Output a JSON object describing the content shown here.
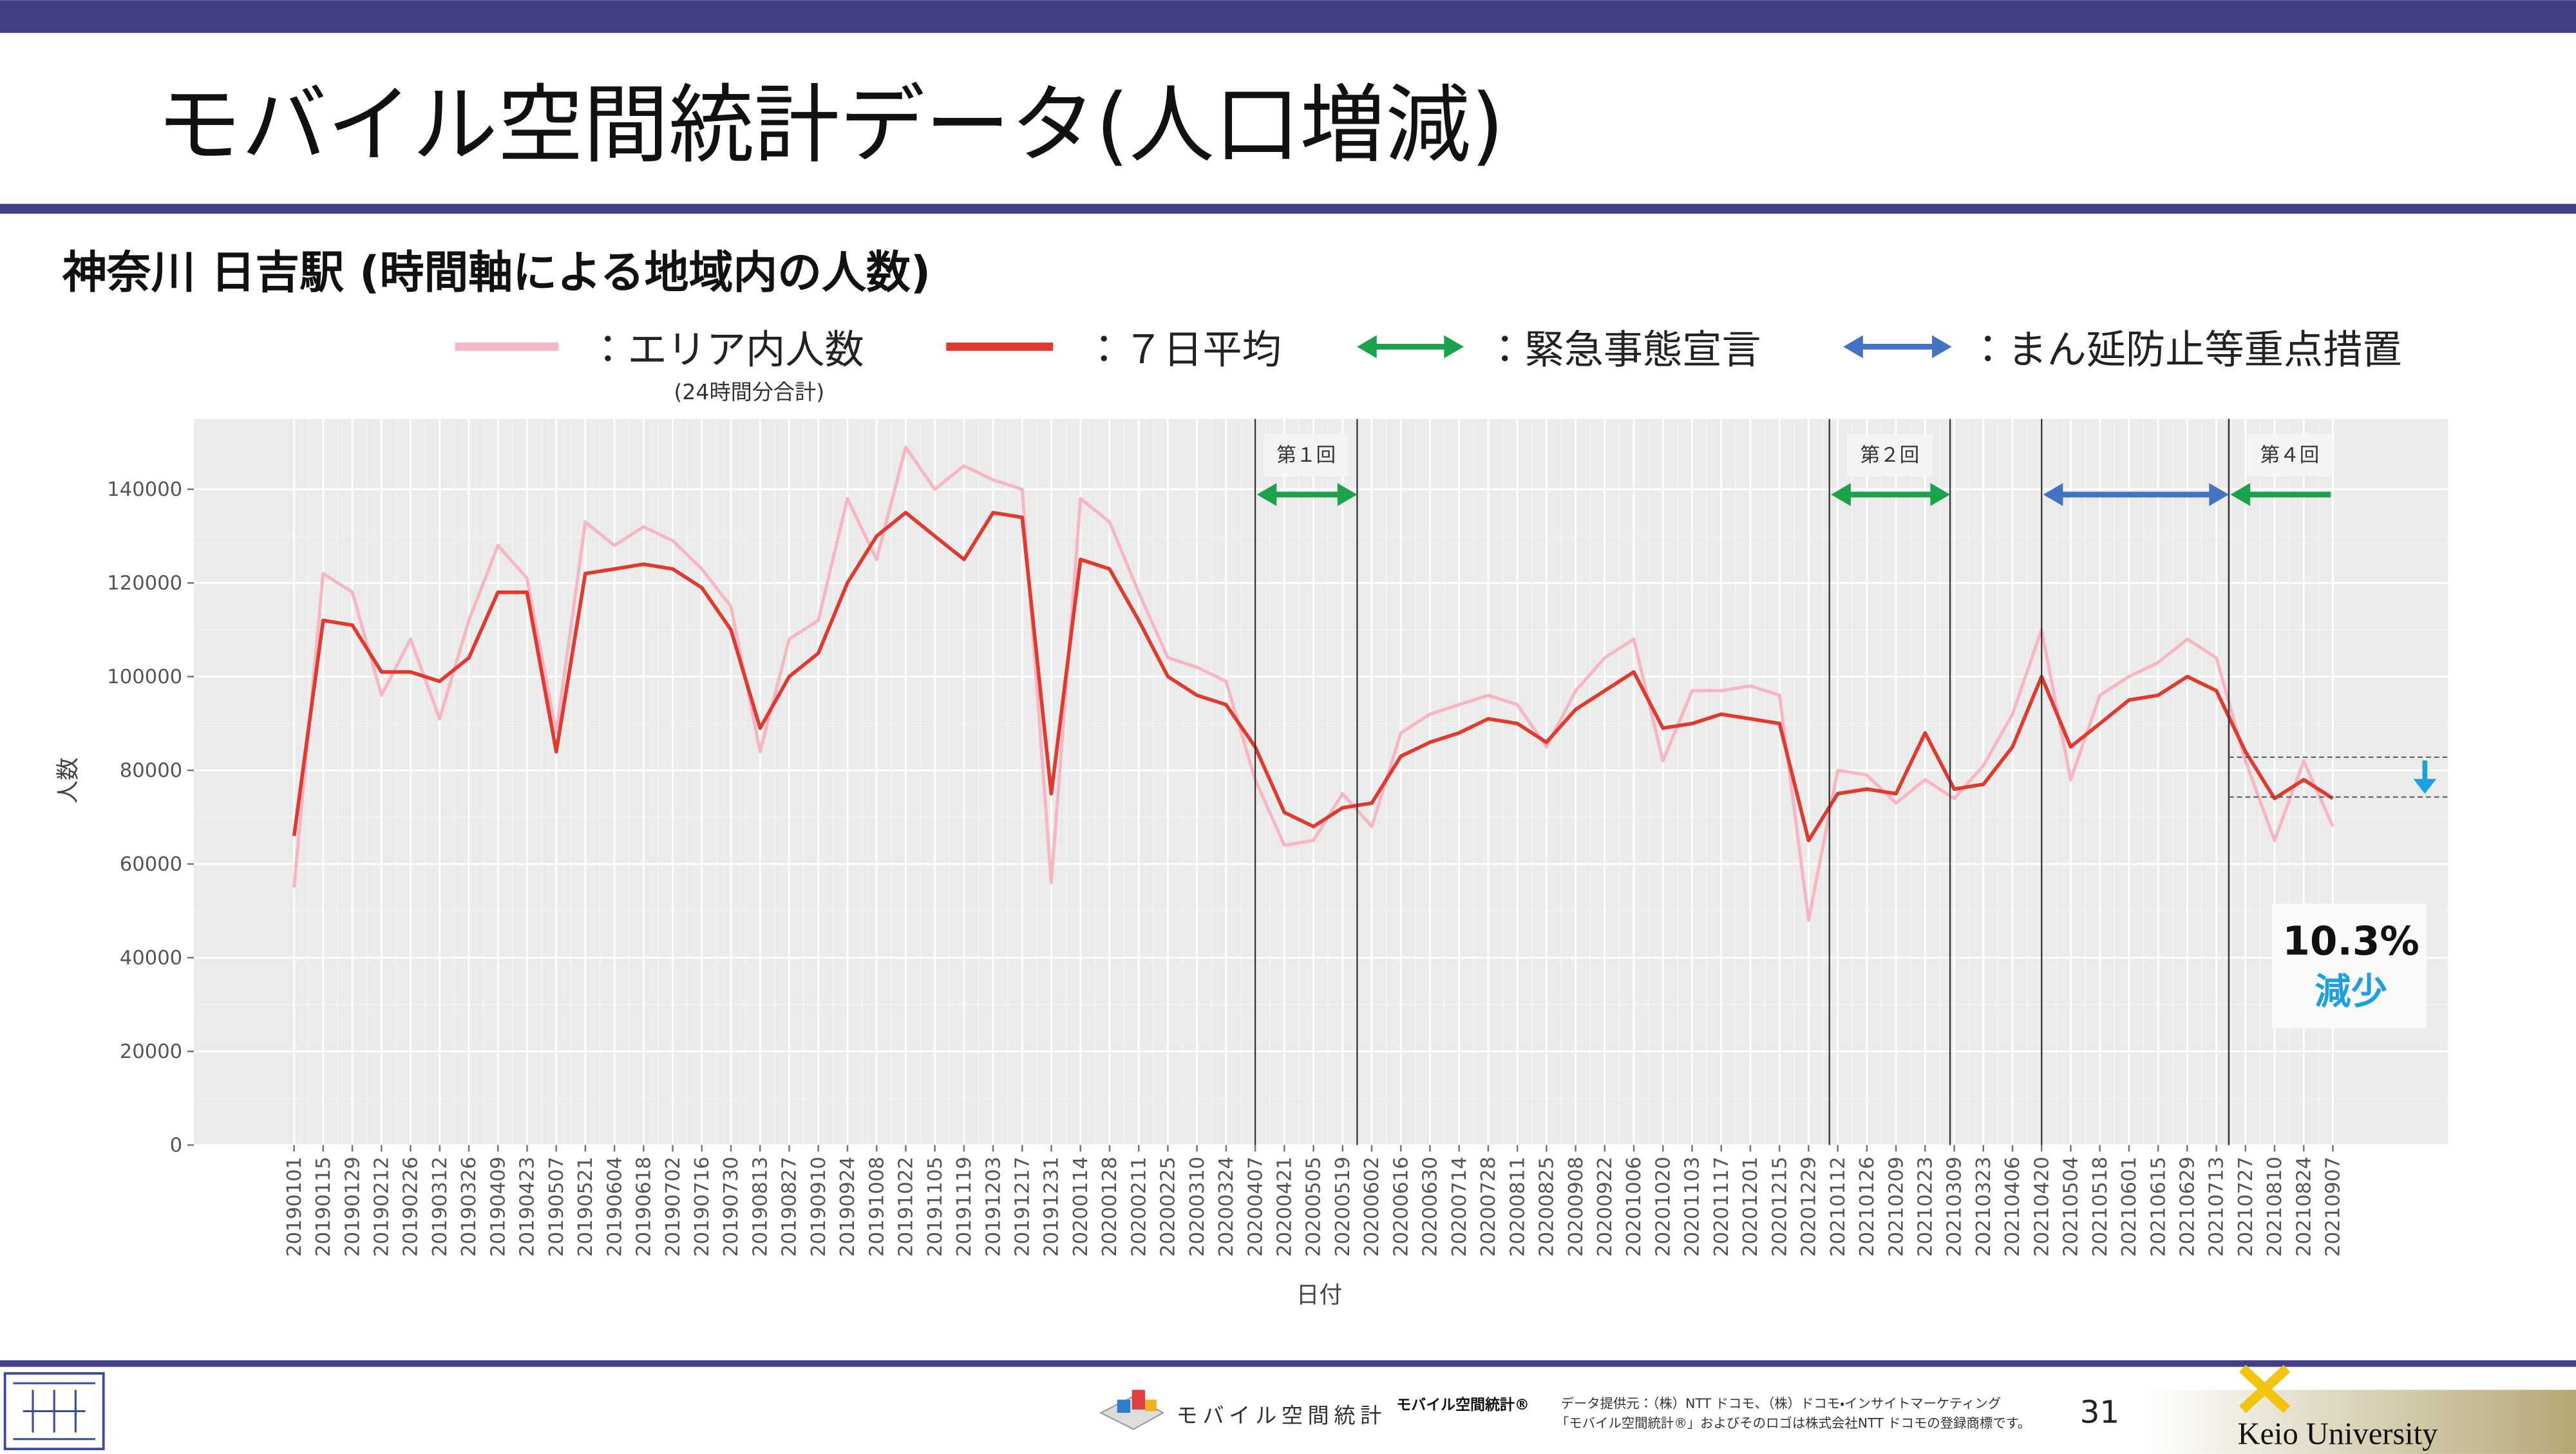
{
  "header": {
    "title": "モバイル空間統計データ(人口増減)",
    "subtitle": "神奈川 日吉駅 (時間軸による地域内の人数)"
  },
  "chart_data": {
    "type": "line",
    "x_label": "日付",
    "y_label": "人数",
    "x": [
      "20190101",
      "20190115",
      "20190129",
      "20190212",
      "20190226",
      "20190312",
      "20190326",
      "20190409",
      "20190423",
      "20190507",
      "20190521",
      "20190604",
      "20190618",
      "20190702",
      "20190716",
      "20190730",
      "20190813",
      "20190827",
      "20190910",
      "20190924",
      "20191008",
      "20191022",
      "20191105",
      "20191119",
      "20191203",
      "20191217",
      "20191231",
      "20200114",
      "20200128",
      "20200211",
      "20200225",
      "20200310",
      "20200324",
      "20200407",
      "20200421",
      "20200505",
      "20200519",
      "20200602",
      "20200616",
      "20200630",
      "20200714",
      "20200728",
      "20200811",
      "20200825",
      "20200908",
      "20200922",
      "20201006",
      "20201020",
      "20201103",
      "20201117",
      "20201201",
      "20201215",
      "20201229",
      "20210112",
      "20210126",
      "20210209",
      "20210223",
      "20210309",
      "20210323",
      "20210406",
      "20210420",
      "20210504",
      "20210518",
      "20210601",
      "20210615",
      "20210629",
      "20210713",
      "20210727",
      "20210810",
      "20210824",
      "20210907"
    ],
    "series": [
      {
        "name": "：エリア内人数",
        "legend_note": "(24時間分合計)",
        "color": "#f7b6c4",
        "values": [
          55000,
          122000,
          118000,
          96000,
          108000,
          91000,
          112000,
          128000,
          121000,
          88000,
          133000,
          128000,
          132000,
          129000,
          123000,
          115000,
          84000,
          108000,
          112000,
          138000,
          125000,
          149000,
          140000,
          145000,
          142000,
          140000,
          56000,
          138000,
          133000,
          118000,
          104000,
          102000,
          99000,
          78000,
          64000,
          65000,
          75000,
          68000,
          88000,
          92000,
          94000,
          96000,
          94000,
          85000,
          97000,
          104000,
          108000,
          82000,
          97000,
          97000,
          98000,
          96000,
          48000,
          80000,
          79000,
          73000,
          78000,
          74000,
          81000,
          92000,
          110000,
          78000,
          96000,
          100000,
          103000,
          108000,
          104000,
          82000,
          65000,
          82000,
          68000
        ]
      },
      {
        "name": "：７日平均",
        "color": "#e03a2f",
        "values": [
          66000,
          112000,
          111000,
          101000,
          101000,
          99000,
          104000,
          118000,
          118000,
          84000,
          122000,
          123000,
          124000,
          123000,
          119000,
          110000,
          89000,
          100000,
          105000,
          120000,
          130000,
          135000,
          130000,
          125000,
          135000,
          134000,
          75000,
          125000,
          123000,
          112000,
          100000,
          96000,
          94000,
          85000,
          71000,
          68000,
          72000,
          73000,
          83000,
          86000,
          88000,
          91000,
          90000,
          86000,
          93000,
          97000,
          101000,
          89000,
          90000,
          92000,
          91000,
          90000,
          65000,
          75000,
          76000,
          75000,
          88000,
          76000,
          77000,
          85000,
          100000,
          85000,
          90000,
          95000,
          96000,
          100000,
          97000,
          84000,
          74000,
          78000,
          74000
        ]
      }
    ],
    "ylim": [
      0,
      155000
    ],
    "yticks": [
      0,
      20000,
      40000,
      60000,
      80000,
      100000,
      120000,
      140000
    ],
    "grid": true,
    "legend_events": [
      {
        "name": "：緊急事態宣言",
        "color": "#1aa34a"
      },
      {
        "name": "：まん延防止等重点措置",
        "color": "#4472c4"
      }
    ],
    "events": [
      {
        "label": "第１回",
        "start": "20200407",
        "end": "20200526",
        "color": "#1aa34a"
      },
      {
        "label": "第２回",
        "start": "20210108",
        "end": "20210307",
        "color": "#1aa34a"
      },
      {
        "start": "20210420",
        "end": "20210719",
        "color": "#4472c4"
      },
      {
        "label": "第４回",
        "start": "20210719",
        "end": "20210906",
        "color": "#1aa34a",
        "open_end": true
      }
    ],
    "change": {
      "from": 82800,
      "to": 74300,
      "label": "10.3%",
      "text": "減少",
      "color": "#1ba1e2"
    }
  },
  "footer": {
    "logo_text": "モバイル空間統計",
    "brand": "モバイル空間統計®",
    "source_line1": "データ提供元：（株）NTT ドコモ、（株）ドコモ・インサイトマーケティング",
    "source_line2": "「モバイル空間統計®」およびそのロゴは株式会社NTT ドコモの登録商標です。",
    "page": "31",
    "university": "Keio University"
  }
}
